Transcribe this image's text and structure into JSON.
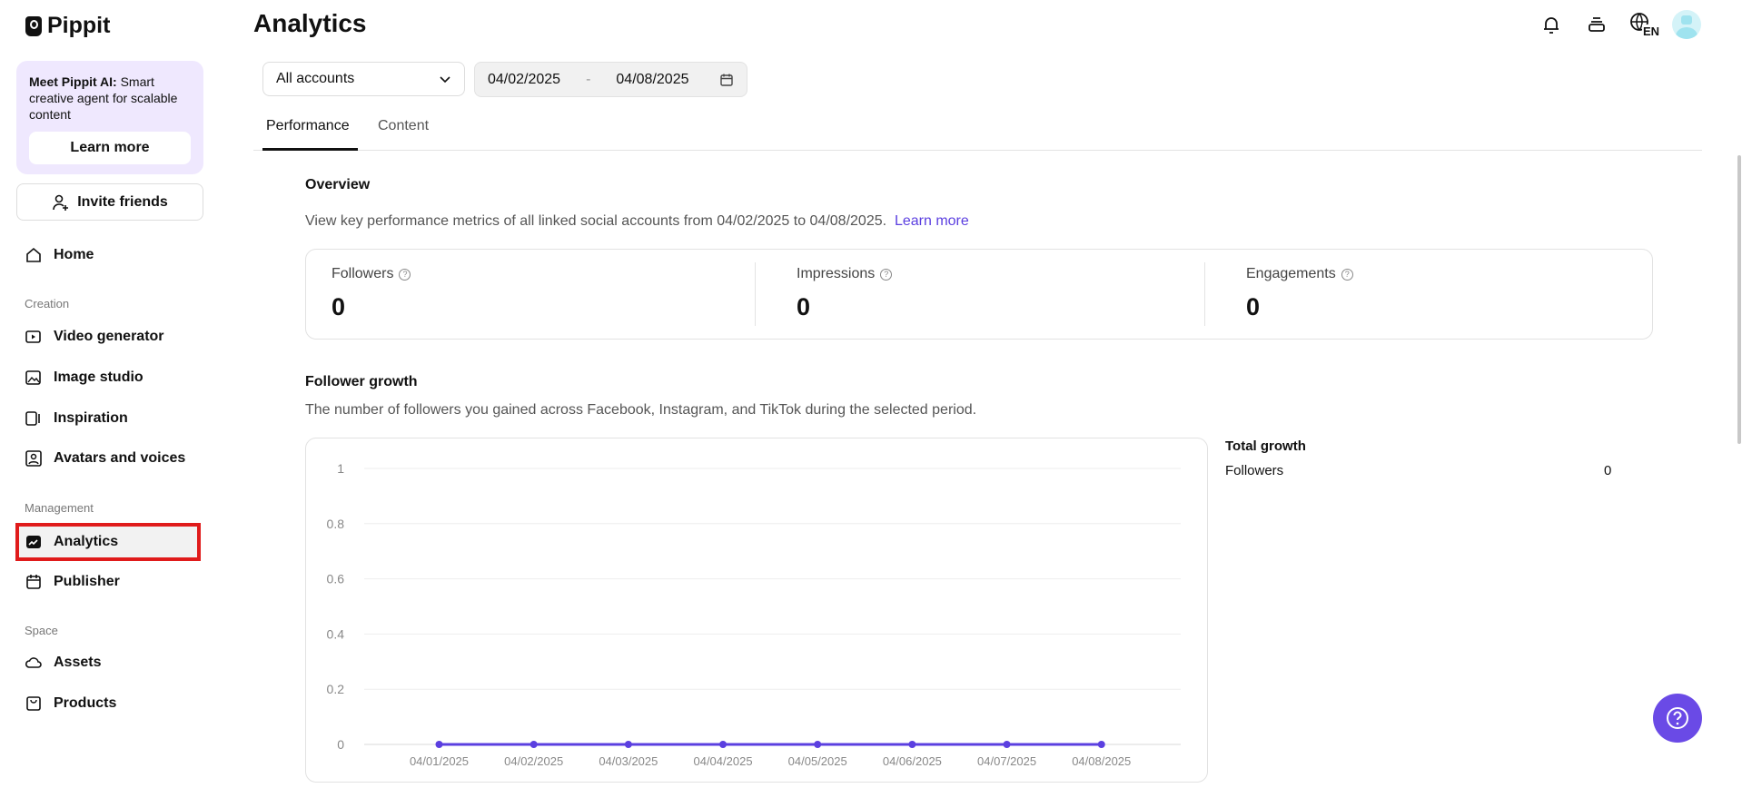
{
  "app": {
    "name": "Pippit",
    "page_title": "Analytics"
  },
  "sidebar": {
    "promo": {
      "bold": "Meet Pippit AI:",
      "text": " Smart creative agent for scalable content",
      "button": "Learn more"
    },
    "invite": "Invite friends",
    "home": "Home",
    "sections": [
      {
        "label": "Creation",
        "items": [
          "Video generator",
          "Image studio",
          "Inspiration",
          "Avatars and voices"
        ]
      },
      {
        "label": "Management",
        "items": [
          "Analytics",
          "Publisher"
        ]
      },
      {
        "label": "Space",
        "items": [
          "Assets",
          "Products"
        ]
      }
    ],
    "active": "Analytics"
  },
  "header": {
    "language": "EN"
  },
  "filters": {
    "account": "All accounts",
    "date_from": "04/02/2025",
    "date_sep": "-",
    "date_to": "04/08/2025"
  },
  "tabs": [
    {
      "label": "Performance",
      "active": true
    },
    {
      "label": "Content",
      "active": false
    }
  ],
  "overview": {
    "title": "Overview",
    "description": "View key performance metrics of all linked social accounts from 04/02/2025 to 04/08/2025.",
    "link": "Learn more",
    "metrics": [
      {
        "label": "Followers",
        "value": "0"
      },
      {
        "label": "Impressions",
        "value": "0"
      },
      {
        "label": "Engagements",
        "value": "0"
      }
    ]
  },
  "follower_growth": {
    "title": "Follower growth",
    "description": "The number of followers you gained across Facebook, Instagram, and TikTok during the selected period.",
    "total_title": "Total growth",
    "total_label": "Followers",
    "total_value": "0"
  },
  "chart_data": {
    "type": "line",
    "categories": [
      "04/01/2025",
      "04/02/2025",
      "04/03/2025",
      "04/04/2025",
      "04/05/2025",
      "04/06/2025",
      "04/07/2025",
      "04/08/2025"
    ],
    "values": [
      0,
      0,
      0,
      0,
      0,
      0,
      0,
      0
    ],
    "yticks": [
      "0",
      "0.2",
      "0.4",
      "0.6",
      "0.8",
      "1"
    ],
    "ylim": [
      0,
      1
    ],
    "grid": true,
    "color": "#5b3fe0"
  }
}
